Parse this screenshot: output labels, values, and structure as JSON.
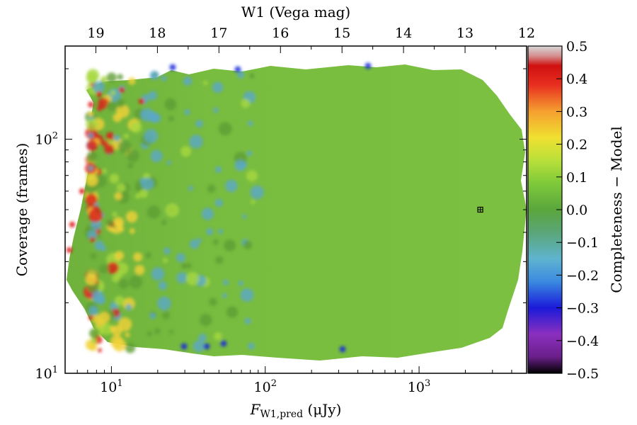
{
  "chart_data": {
    "type": "heatmap",
    "top_axis": {
      "label": "W1 (Vega mag)",
      "ticks": [
        {
          "mag": 19,
          "label": "19"
        },
        {
          "mag": 18,
          "label": "18"
        },
        {
          "mag": 17,
          "label": "17"
        },
        {
          "mag": 16,
          "label": "16"
        },
        {
          "mag": 15,
          "label": "15"
        },
        {
          "mag": 14,
          "label": "14"
        },
        {
          "mag": 13,
          "label": "13"
        },
        {
          "mag": 12,
          "label": "12"
        }
      ]
    },
    "x_axis": {
      "label_main": "F",
      "label_subscript": "W1,pred",
      "label_unit": " (μJy)",
      "scale": "log",
      "range": [
        5,
        5000
      ],
      "ticks": [
        {
          "value": 10,
          "base": "10",
          "exp": "1"
        },
        {
          "value": 100,
          "base": "10",
          "exp": "2"
        },
        {
          "value": 1000,
          "base": "10",
          "exp": "3"
        }
      ]
    },
    "y_axis": {
      "label": "Coverage (frames)",
      "scale": "log",
      "range": [
        10,
        250
      ],
      "ticks": [
        {
          "value": 10,
          "base": "10",
          "exp": "1"
        },
        {
          "value": 100,
          "base": "10",
          "exp": "2"
        }
      ]
    },
    "colorbar": {
      "label": "Completeness − Model",
      "range": [
        -0.5,
        0.5
      ],
      "tick_labels": [
        "−0.5",
        "−0.4",
        "−0.3",
        "−0.2",
        "−0.1",
        "0.0",
        "0.1",
        "0.2",
        "0.3",
        "0.4",
        "0.5"
      ],
      "tick_values": [
        -0.5,
        -0.4,
        -0.3,
        -0.2,
        -0.1,
        0.0,
        0.1,
        0.2,
        0.3,
        0.4,
        0.5
      ],
      "stops": [
        {
          "value": -0.5,
          "color": "#000000"
        },
        {
          "value": -0.45,
          "color": "#6a1f8a"
        },
        {
          "value": -0.38,
          "color": "#8b2fbf"
        },
        {
          "value": -0.3,
          "color": "#1a1ad9"
        },
        {
          "value": -0.22,
          "color": "#3a8ae0"
        },
        {
          "value": -0.15,
          "color": "#5fb4cf"
        },
        {
          "value": -0.07,
          "color": "#5aa678"
        },
        {
          "value": 0.0,
          "color": "#5aa63c"
        },
        {
          "value": 0.08,
          "color": "#7ec93a"
        },
        {
          "value": 0.15,
          "color": "#b8e03a"
        },
        {
          "value": 0.22,
          "color": "#f0e030"
        },
        {
          "value": 0.3,
          "color": "#f5a030"
        },
        {
          "value": 0.38,
          "color": "#e83020"
        },
        {
          "value": 0.44,
          "color": "#d01010"
        },
        {
          "value": 0.47,
          "color": "#d49090"
        },
        {
          "value": 0.5,
          "color": "#d8d8d8"
        }
      ]
    },
    "dominant_value": 0.05,
    "colors": {
      "field": "#7cc041",
      "field_dark": "#5e9e34",
      "positive": "#dd1a1a",
      "warm": "#f2d23a",
      "negative": "#5aa7c9",
      "deep_negative": "#1a2ad9"
    },
    "marker": {
      "x_flux": 2500,
      "y_coverage": 50,
      "shape": "boxed-plus"
    }
  }
}
